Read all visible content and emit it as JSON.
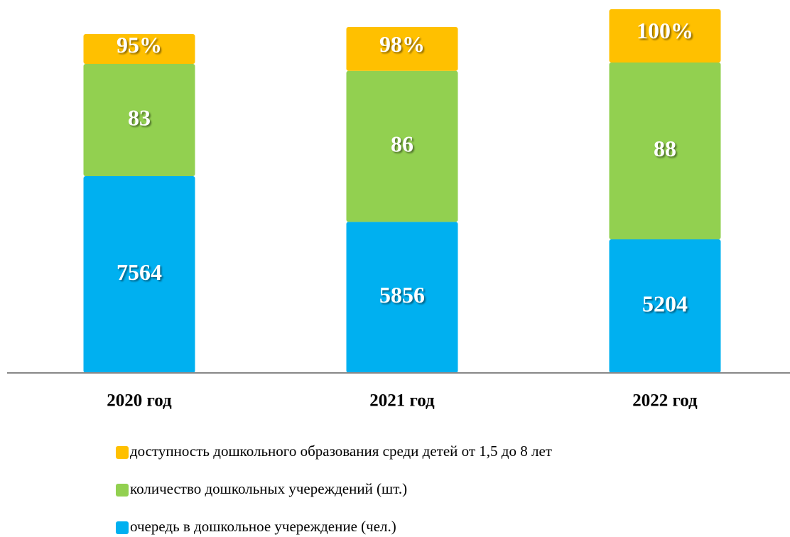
{
  "chart_data": {
    "type": "stacked_bar",
    "categories": [
      "2020 год",
      "2021 год",
      "2022 год"
    ],
    "series": [
      {
        "name": "очередь в дошкольное учереждение (чел.)",
        "color": "#00b0f0",
        "values": [
          7564,
          5856,
          5204
        ]
      },
      {
        "name": "количество дошкольных учереждений (шт.)",
        "color": "#92d050",
        "values": [
          83,
          86,
          88
        ]
      },
      {
        "name": "доступность дошкольного образования среди детей от 1,5 до 8 лет",
        "color": "#ffc000",
        "values": [
          95,
          98,
          100
        ],
        "value_labels": [
          "95%",
          "98%",
          "100%"
        ]
      }
    ]
  }
}
